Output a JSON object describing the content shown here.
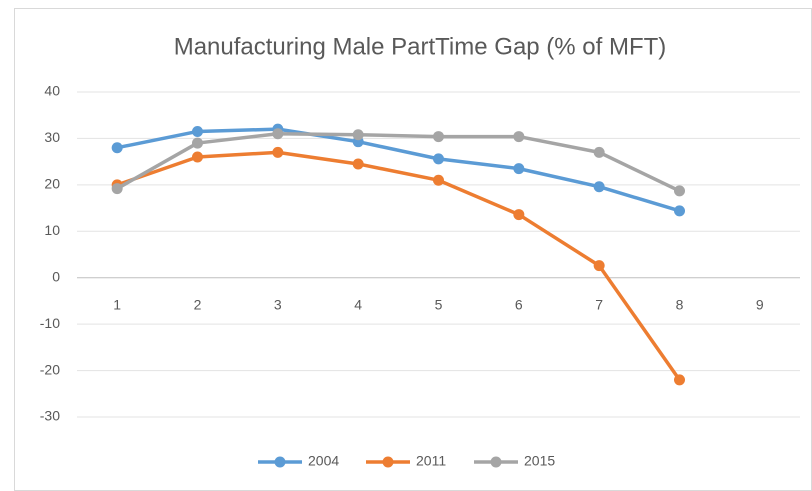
{
  "chart_data": {
    "type": "line",
    "title": "Manufacturing Male PartTime Gap (% of MFT)",
    "categories": [
      "1",
      "2",
      "3",
      "4",
      "5",
      "6",
      "7",
      "8",
      "9"
    ],
    "series": [
      {
        "name": "2004",
        "color": "#5b9bd5",
        "values": [
          28,
          31.5,
          32,
          29.3,
          25.6,
          23.5,
          19.6,
          14.4,
          null
        ]
      },
      {
        "name": "2011",
        "color": "#ed7d31",
        "values": [
          20,
          26,
          27,
          24.5,
          21,
          13.6,
          2.6,
          -22,
          null
        ]
      },
      {
        "name": "2015",
        "color": "#a5a5a5",
        "values": [
          19.2,
          29,
          31,
          30.8,
          30.4,
          30.4,
          27,
          18.7,
          null
        ]
      }
    ],
    "ylim": [
      -30,
      40
    ],
    "yticks": [
      -30,
      -20,
      -10,
      0,
      10,
      20,
      30,
      40
    ],
    "grid": true,
    "legend": "bottom"
  }
}
